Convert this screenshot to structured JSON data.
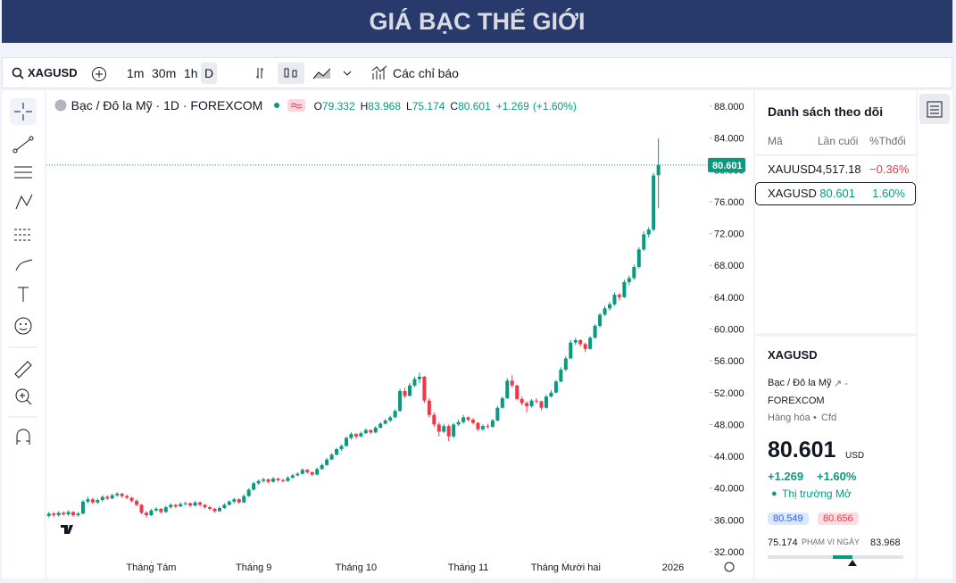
{
  "header": {
    "title": "GIÁ BẠC THẾ GIỚI"
  },
  "toolbar": {
    "symbol": "XAGUSD",
    "intervals": [
      "1m",
      "30m",
      "1h",
      "D"
    ],
    "indicators": "Các chỉ báo"
  },
  "legend": {
    "title": "Bạc / Đô la Mỹ · 1D · FOREXCOM",
    "fields": [
      {
        "key": "O",
        "value": "79.332"
      },
      {
        "key": "H",
        "value": "83.968"
      },
      {
        "key": "L",
        "value": "75.174"
      },
      {
        "key": "C",
        "value": "80.601"
      }
    ],
    "change": "+1.269",
    "change_pct": "(+1.60%)"
  },
  "chart_data": {
    "type": "candlestick",
    "up_color": "#089981",
    "down_color": "#f23645",
    "ylim": [
      32,
      88
    ],
    "yticks": [
      {
        "value": 32,
        "label": "32.000"
      },
      {
        "value": 36,
        "label": "36.000"
      },
      {
        "value": 40,
        "label": "40.000"
      },
      {
        "value": 44,
        "label": "44.000"
      },
      {
        "value": 48,
        "label": "48.000"
      },
      {
        "value": 52,
        "label": "52.000"
      },
      {
        "value": 56,
        "label": "56.000"
      },
      {
        "value": 60,
        "label": "60.000"
      },
      {
        "value": 64,
        "label": "64.000"
      },
      {
        "value": 68,
        "label": "68.000"
      },
      {
        "value": 72,
        "label": "72.000"
      },
      {
        "value": 76,
        "label": "76.000"
      },
      {
        "value": 80,
        "label": "80.000"
      },
      {
        "value": 84,
        "label": "84.000"
      },
      {
        "value": 88,
        "label": "88.000"
      }
    ],
    "xlim": [
      -0.5,
      135.5
    ],
    "xticks": [
      {
        "value": 21,
        "label": "Tháng Tám"
      },
      {
        "value": 42,
        "label": "Tháng 9"
      },
      {
        "value": 63,
        "label": "Tháng 10"
      },
      {
        "value": 86,
        "label": "Tháng 11"
      },
      {
        "value": 106,
        "label": "Tháng Mười hai"
      },
      {
        "value": 128,
        "label": "2026"
      }
    ],
    "last_price": {
      "value": 80.601,
      "label": "80.601"
    },
    "candles": [
      [
        36.5,
        37.0,
        36.3,
        36.8
      ],
      [
        36.8,
        37.0,
        36.4,
        36.6
      ],
      [
        36.6,
        37.1,
        36.4,
        36.9
      ],
      [
        36.9,
        37.1,
        36.5,
        36.7
      ],
      [
        36.7,
        37.2,
        36.5,
        37.0
      ],
      [
        37.0,
        37.1,
        36.4,
        36.6
      ],
      [
        36.6,
        37.0,
        36.4,
        36.8
      ],
      [
        36.8,
        38.5,
        36.7,
        38.3
      ],
      [
        38.3,
        38.9,
        38.1,
        38.6
      ],
      [
        38.6,
        38.8,
        38.0,
        38.2
      ],
      [
        38.2,
        38.7,
        38.0,
        38.5
      ],
      [
        38.5,
        39.1,
        38.3,
        38.9
      ],
      [
        38.9,
        39.1,
        38.5,
        38.7
      ],
      [
        38.7,
        39.3,
        38.6,
        39.1
      ],
      [
        39.1,
        39.5,
        38.9,
        39.3
      ],
      [
        39.3,
        39.4,
        38.8,
        39.0
      ],
      [
        39.0,
        39.2,
        38.6,
        38.8
      ],
      [
        38.8,
        38.9,
        38.2,
        38.4
      ],
      [
        38.4,
        38.6,
        37.7,
        37.9
      ],
      [
        37.9,
        38.0,
        36.7,
        36.9
      ],
      [
        36.9,
        37.1,
        36.3,
        36.6
      ],
      [
        36.6,
        37.4,
        36.5,
        37.2
      ],
      [
        37.2,
        37.6,
        37.0,
        37.4
      ],
      [
        37.4,
        37.5,
        36.8,
        37.0
      ],
      [
        37.0,
        37.8,
        36.9,
        37.6
      ],
      [
        37.6,
        38.1,
        37.4,
        37.9
      ],
      [
        37.9,
        38.0,
        37.5,
        37.7
      ],
      [
        37.7,
        38.2,
        37.6,
        38.0
      ],
      [
        38.0,
        38.3,
        37.8,
        38.1
      ],
      [
        38.1,
        38.2,
        37.6,
        37.8
      ],
      [
        37.8,
        38.4,
        37.7,
        38.2
      ],
      [
        38.2,
        38.3,
        37.7,
        37.9
      ],
      [
        37.9,
        38.0,
        37.4,
        37.6
      ],
      [
        37.6,
        37.8,
        37.2,
        37.4
      ],
      [
        37.4,
        37.5,
        36.9,
        37.1
      ],
      [
        37.1,
        37.7,
        37.0,
        37.5
      ],
      [
        37.5,
        38.1,
        37.4,
        37.9
      ],
      [
        37.9,
        38.5,
        37.8,
        38.3
      ],
      [
        38.3,
        38.8,
        38.1,
        38.6
      ],
      [
        38.6,
        38.7,
        38.0,
        38.2
      ],
      [
        38.2,
        39.2,
        38.1,
        39.0
      ],
      [
        39.0,
        40.0,
        38.9,
        39.8
      ],
      [
        39.8,
        40.8,
        39.7,
        40.6
      ],
      [
        40.6,
        41.1,
        40.4,
        40.9
      ],
      [
        40.9,
        41.3,
        40.7,
        41.1
      ],
      [
        41.1,
        41.2,
        40.6,
        40.8
      ],
      [
        40.8,
        41.4,
        40.7,
        41.2
      ],
      [
        41.2,
        41.3,
        40.8,
        41.0
      ],
      [
        41.0,
        41.2,
        40.7,
        40.9
      ],
      [
        40.9,
        41.5,
        40.8,
        41.3
      ],
      [
        41.3,
        41.8,
        41.2,
        41.6
      ],
      [
        41.6,
        42.0,
        41.5,
        41.8
      ],
      [
        41.8,
        42.5,
        41.7,
        42.3
      ],
      [
        42.3,
        42.4,
        41.8,
        42.0
      ],
      [
        42.0,
        42.1,
        41.5,
        41.7
      ],
      [
        41.7,
        42.6,
        41.6,
        42.4
      ],
      [
        42.4,
        43.1,
        42.3,
        42.9
      ],
      [
        42.9,
        43.8,
        42.8,
        43.6
      ],
      [
        43.6,
        44.4,
        43.5,
        44.2
      ],
      [
        44.2,
        45.1,
        44.1,
        44.9
      ],
      [
        44.9,
        45.5,
        44.7,
        45.3
      ],
      [
        45.3,
        46.5,
        45.2,
        46.3
      ],
      [
        46.3,
        47.0,
        46.1,
        46.8
      ],
      [
        46.8,
        46.9,
        46.2,
        46.5
      ],
      [
        46.5,
        47.1,
        46.4,
        46.9
      ],
      [
        46.9,
        47.5,
        46.8,
        47.3
      ],
      [
        47.3,
        47.4,
        46.8,
        47.0
      ],
      [
        47.0,
        47.8,
        46.9,
        47.6
      ],
      [
        47.6,
        48.3,
        47.5,
        48.1
      ],
      [
        48.1,
        48.7,
        48.0,
        48.5
      ],
      [
        48.5,
        49.1,
        48.3,
        48.9
      ],
      [
        48.9,
        49.9,
        48.8,
        49.7
      ],
      [
        49.7,
        52.5,
        49.6,
        52.2
      ],
      [
        52.2,
        52.6,
        51.3,
        51.6
      ],
      [
        51.6,
        53.2,
        51.5,
        52.9
      ],
      [
        52.9,
        54.0,
        52.7,
        53.7
      ],
      [
        53.7,
        54.5,
        53.2,
        54.0
      ],
      [
        54.0,
        54.1,
        50.7,
        51.0
      ],
      [
        51.0,
        51.3,
        48.9,
        49.2
      ],
      [
        49.2,
        49.5,
        47.7,
        48.0
      ],
      [
        48.0,
        48.3,
        46.5,
        47.1
      ],
      [
        47.1,
        48.1,
        46.9,
        47.8
      ],
      [
        47.8,
        48.0,
        45.9,
        46.5
      ],
      [
        46.5,
        48.2,
        46.3,
        48.0
      ],
      [
        48.0,
        48.6,
        47.8,
        48.3
      ],
      [
        48.3,
        49.2,
        48.1,
        48.9
      ],
      [
        48.9,
        49.0,
        48.4,
        48.6
      ],
      [
        48.6,
        48.8,
        48.0,
        48.2
      ],
      [
        48.2,
        48.3,
        47.2,
        47.4
      ],
      [
        47.4,
        48.0,
        47.2,
        47.8
      ],
      [
        47.8,
        48.1,
        47.5,
        47.7
      ],
      [
        47.7,
        48.7,
        47.6,
        48.5
      ],
      [
        48.5,
        50.3,
        48.4,
        50.1
      ],
      [
        50.1,
        51.5,
        50.0,
        51.3
      ],
      [
        51.3,
        53.8,
        51.2,
        53.5
      ],
      [
        53.5,
        54.2,
        52.6,
        52.9
      ],
      [
        52.9,
        53.0,
        51.0,
        51.2
      ],
      [
        51.2,
        51.5,
        50.4,
        50.7
      ],
      [
        50.7,
        50.9,
        49.5,
        50.3
      ],
      [
        50.3,
        51.2,
        50.1,
        51.0
      ],
      [
        51.0,
        51.3,
        50.6,
        50.9
      ],
      [
        50.9,
        51.0,
        49.8,
        50.1
      ],
      [
        50.1,
        51.7,
        50.0,
        51.5
      ],
      [
        51.5,
        52.3,
        51.4,
        52.0
      ],
      [
        52.0,
        53.6,
        51.9,
        53.4
      ],
      [
        53.4,
        55.2,
        53.3,
        54.9
      ],
      [
        54.9,
        56.6,
        54.7,
        56.3
      ],
      [
        56.3,
        58.6,
        56.2,
        58.3
      ],
      [
        58.3,
        58.9,
        58.0,
        58.6
      ],
      [
        58.6,
        58.7,
        57.8,
        58.1
      ],
      [
        58.1,
        58.3,
        57.1,
        57.5
      ],
      [
        57.5,
        59.1,
        57.4,
        58.9
      ],
      [
        58.9,
        60.6,
        58.8,
        60.4
      ],
      [
        60.4,
        62.0,
        60.2,
        61.8
      ],
      [
        61.8,
        62.9,
        61.6,
        62.6
      ],
      [
        62.6,
        63.4,
        62.3,
        63.1
      ],
      [
        63.1,
        64.6,
        62.9,
        64.3
      ],
      [
        64.3,
        64.5,
        63.6,
        64.0
      ],
      [
        64.0,
        66.2,
        63.9,
        65.9
      ],
      [
        65.9,
        66.7,
        65.5,
        66.4
      ],
      [
        66.4,
        68.1,
        66.2,
        67.8
      ],
      [
        67.8,
        70.3,
        67.6,
        70.0
      ],
      [
        70.0,
        72.3,
        69.8,
        71.9
      ],
      [
        71.9,
        72.8,
        71.5,
        72.5
      ],
      [
        72.5,
        79.6,
        72.3,
        79.3
      ],
      [
        79.332,
        83.968,
        75.174,
        80.601
      ]
    ]
  },
  "watchlist": {
    "title": "Danh sách theo dõi",
    "columns": [
      "Mã",
      "Lần cuối",
      "%Thđổi"
    ],
    "rows": [
      [
        "XAUUSD",
        "4,517.18",
        "−0.36%"
      ],
      [
        "XAGUSD",
        "80.601",
        "1.60%"
      ]
    ]
  },
  "details": {
    "symbol": "XAGUSD",
    "name": "Bạc / Đô la Mỹ",
    "exchange": "FOREXCOM",
    "category": "Hàng hóa",
    "kind": "Cfd",
    "price": "80.601",
    "currency": "USD",
    "change": "+1.269",
    "change_pct": "+1.60%",
    "status": "Thị trường Mở",
    "bid": "80.549",
    "ask": "80.656",
    "range_low": "75.174",
    "range_label": "PHẠM VI NGÀY",
    "range_high": "83.968"
  }
}
